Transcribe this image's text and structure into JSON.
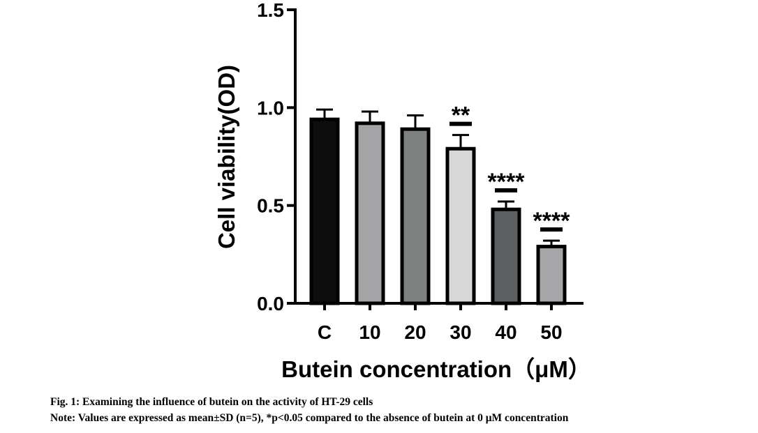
{
  "chart_data": {
    "type": "bar",
    "categories": [
      "C",
      "10",
      "20",
      "30",
      "40",
      "50"
    ],
    "values": [
      0.94,
      0.92,
      0.89,
      0.79,
      0.48,
      0.29
    ],
    "errors": [
      0.05,
      0.06,
      0.07,
      0.07,
      0.04,
      0.03
    ],
    "significance": [
      "",
      "",
      "",
      "**",
      "****",
      "****"
    ],
    "bar_colors": [
      "#0d0d0d",
      "#a4a4a6",
      "#7d8281",
      "#d7d7d7",
      "#5b5f62",
      "#a6a6a8"
    ],
    "xlabel": "Butein concentration（μM）",
    "ylabel": "Cell viability(OD)",
    "ylim": [
      0,
      1.5
    ],
    "yticks": [
      "0.0",
      "0.5",
      "1.0",
      "1.5"
    ],
    "grid": false
  },
  "caption": {
    "title": "Fig. 1: Examining the influence of butein on the activity of HT-29 cells",
    "note": "Note: Values are expressed as mean±SD (n=5), *p<0.05 compared to the absence of butein at 0 μM concentration"
  }
}
